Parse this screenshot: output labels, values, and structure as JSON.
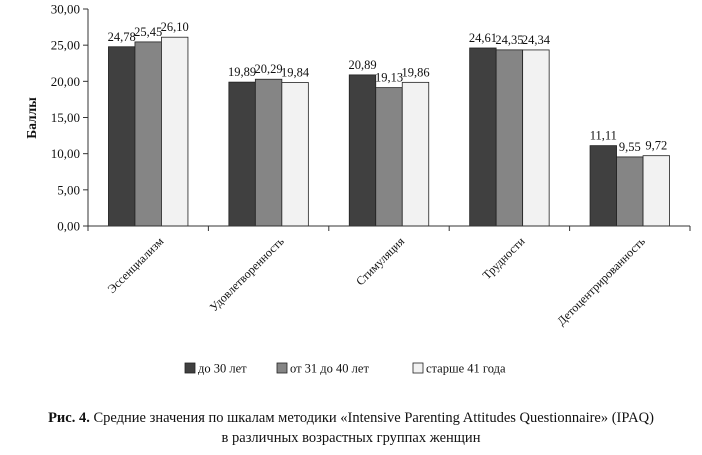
{
  "chart_data": {
    "type": "bar",
    "ylabel": "Баллы",
    "xlabel": "",
    "ylim": [
      0,
      30
    ],
    "ytick_step": 5,
    "ytick_labels": [
      "0,00",
      "5,00",
      "10,00",
      "15,00",
      "20,00",
      "25,00",
      "30,00"
    ],
    "grid": false,
    "legend_position": "bottom",
    "categories": [
      "Эссенциализм",
      "Удовлетворенность",
      "Стимуляция",
      "Трудности",
      "Детоцентрированность"
    ],
    "series": [
      {
        "name": "до 30 лет",
        "color": "#404040",
        "values": [
          24.78,
          19.89,
          20.89,
          24.61,
          11.11
        ],
        "labels": [
          "24,78",
          "19,89",
          "20,89",
          "24,61",
          "11,11"
        ]
      },
      {
        "name": "от 31 до 40 лет",
        "color": "#858585",
        "values": [
          25.45,
          20.29,
          19.13,
          24.35,
          9.55
        ],
        "labels": [
          "25,45",
          "20,29",
          "19,13",
          "24,35",
          "9,55"
        ]
      },
      {
        "name": "старше 41 года",
        "color": "#f2f2f2",
        "values": [
          26.1,
          19.84,
          19.86,
          24.34,
          9.72
        ],
        "labels": [
          "26,10",
          "19,84",
          "19,86",
          "24,34",
          "9,72"
        ]
      }
    ]
  },
  "caption": {
    "label": "Рис. 4.",
    "text": " Средние значения по шкалам методики «Intensive Parenting Attitudes Questionnaire» (IPAQ)",
    "line2": "в различных возрастных группах женщин"
  }
}
